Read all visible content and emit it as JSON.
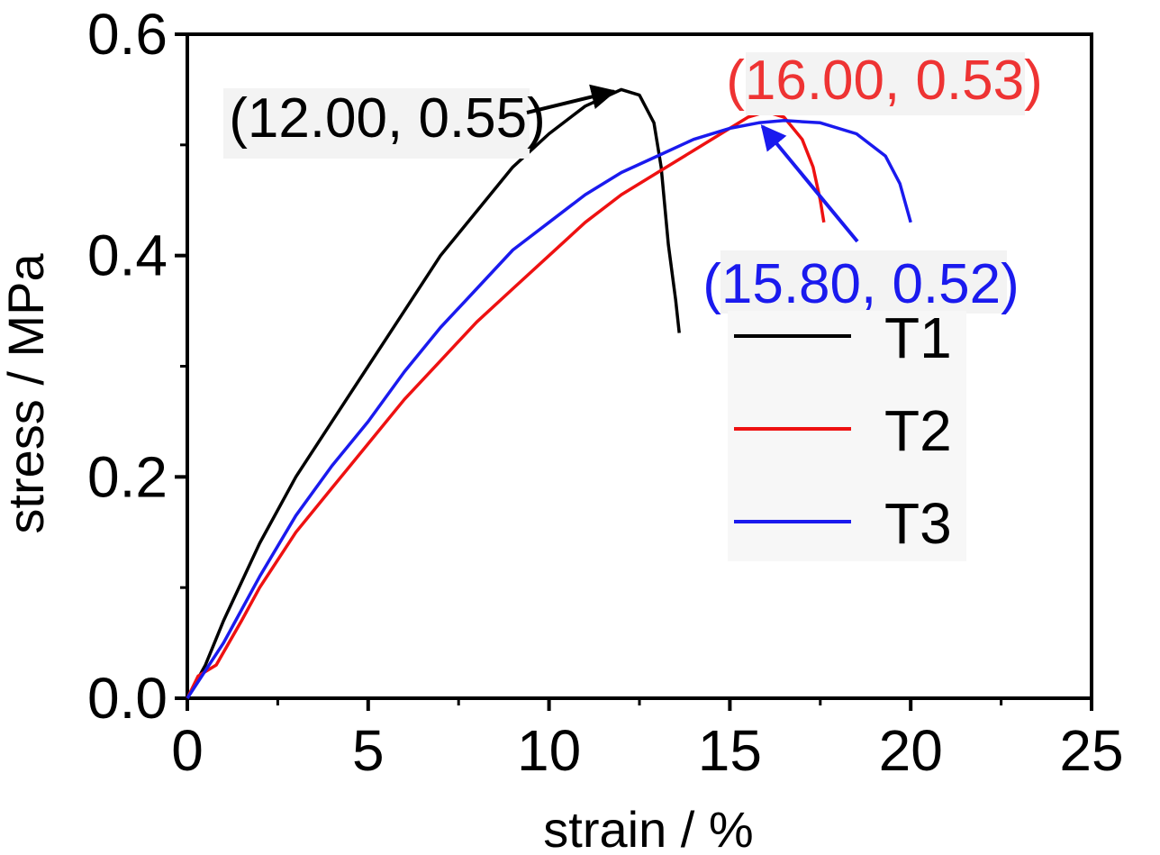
{
  "chart_data": {
    "type": "line",
    "xlabel": "strain / %",
    "ylabel": "stress / MPa",
    "xlim": [
      0,
      25
    ],
    "ylim": [
      0,
      0.6
    ],
    "xticks": [
      0,
      5,
      10,
      15,
      20,
      25
    ],
    "yticks": [
      0.0,
      0.2,
      0.4,
      0.6
    ],
    "xtick_labels": [
      "0",
      "5",
      "10",
      "15",
      "20",
      "25"
    ],
    "ytick_labels": [
      "0.0",
      "0.2",
      "0.4",
      "0.6"
    ],
    "grid": false,
    "legend_position": "right",
    "series": [
      {
        "name": "T1",
        "color": "#000000",
        "points": [
          [
            0,
            0
          ],
          [
            0.5,
            0.03
          ],
          [
            1,
            0.07
          ],
          [
            2,
            0.14
          ],
          [
            3,
            0.2
          ],
          [
            4,
            0.25
          ],
          [
            5,
            0.3
          ],
          [
            6,
            0.35
          ],
          [
            7,
            0.4
          ],
          [
            8,
            0.44
          ],
          [
            9,
            0.48
          ],
          [
            10,
            0.51
          ],
          [
            11,
            0.535
          ],
          [
            12,
            0.55
          ],
          [
            12.5,
            0.545
          ],
          [
            12.9,
            0.52
          ],
          [
            13.1,
            0.48
          ],
          [
            13.3,
            0.41
          ],
          [
            13.5,
            0.36
          ],
          [
            13.6,
            0.33
          ]
        ]
      },
      {
        "name": "T2",
        "color": "#ee1111",
        "points": [
          [
            0,
            0
          ],
          [
            0.3,
            0.02
          ],
          [
            0.8,
            0.03
          ],
          [
            1.5,
            0.07
          ],
          [
            2,
            0.1
          ],
          [
            3,
            0.15
          ],
          [
            4,
            0.19
          ],
          [
            5,
            0.23
          ],
          [
            6,
            0.27
          ],
          [
            7,
            0.305
          ],
          [
            8,
            0.34
          ],
          [
            9,
            0.37
          ],
          [
            10,
            0.4
          ],
          [
            11,
            0.43
          ],
          [
            12,
            0.455
          ],
          [
            13,
            0.475
          ],
          [
            14,
            0.495
          ],
          [
            15,
            0.515
          ],
          [
            15.5,
            0.525
          ],
          [
            16,
            0.53
          ],
          [
            16.5,
            0.525
          ],
          [
            17,
            0.505
          ],
          [
            17.3,
            0.48
          ],
          [
            17.5,
            0.45
          ],
          [
            17.6,
            0.43
          ]
        ]
      },
      {
        "name": "T3",
        "color": "#1a1aee",
        "points": [
          [
            0,
            0
          ],
          [
            0.5,
            0.025
          ],
          [
            1,
            0.05
          ],
          [
            2,
            0.11
          ],
          [
            3,
            0.165
          ],
          [
            4,
            0.21
          ],
          [
            5,
            0.25
          ],
          [
            6,
            0.295
          ],
          [
            7,
            0.335
          ],
          [
            8,
            0.37
          ],
          [
            9,
            0.405
          ],
          [
            10,
            0.43
          ],
          [
            11,
            0.455
          ],
          [
            12,
            0.475
          ],
          [
            13,
            0.49
          ],
          [
            14,
            0.505
          ],
          [
            15,
            0.515
          ],
          [
            15.8,
            0.52
          ],
          [
            16.5,
            0.522
          ],
          [
            17.5,
            0.52
          ],
          [
            18.5,
            0.51
          ],
          [
            19.3,
            0.49
          ],
          [
            19.7,
            0.465
          ],
          [
            20,
            0.43
          ]
        ]
      }
    ],
    "annotations": [
      {
        "text": "(12.00, 0.55)",
        "color": "#000000",
        "target": [
          12.0,
          0.55
        ]
      },
      {
        "text": "(16.00, 0.53)",
        "color": "#ee3333",
        "target": [
          16.0,
          0.53
        ]
      },
      {
        "text": "(15.80, 0.52)",
        "color": "#1a1aee",
        "target": [
          15.8,
          0.52
        ]
      }
    ]
  }
}
